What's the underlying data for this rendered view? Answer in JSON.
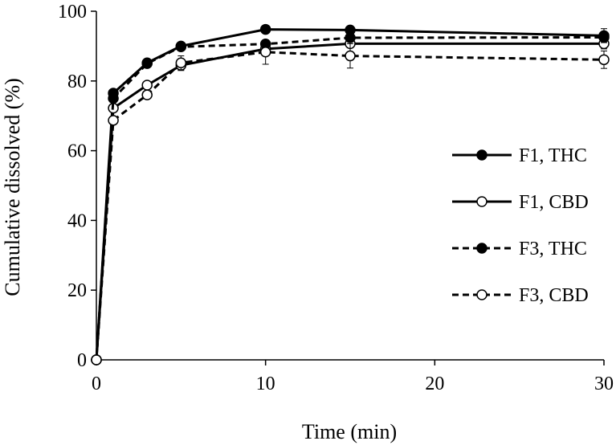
{
  "chart_data": {
    "type": "line",
    "xlabel": "Time (min)",
    "ylabel": "Cumulative dissolved (%)",
    "xlim": [
      0,
      30
    ],
    "ylim": [
      0,
      100
    ],
    "x_ticks": [
      0,
      10,
      20,
      30
    ],
    "y_ticks": [
      0,
      20,
      40,
      60,
      80,
      100
    ],
    "grid": false,
    "legend_position": "right",
    "series": [
      {
        "name": "F1, THC",
        "line": "solid",
        "marker": "filled",
        "x": [
          0,
          1,
          3,
          5,
          10,
          15,
          30
        ],
        "y": [
          0,
          76.5,
          85.2,
          90.0,
          94.8,
          94.6,
          93.0
        ],
        "err": [
          0,
          0.8,
          0.8,
          0.8,
          0.8,
          0.8,
          2.0
        ]
      },
      {
        "name": "F1, CBD",
        "line": "solid",
        "marker": "open",
        "x": [
          0,
          1,
          3,
          5,
          10,
          15,
          30
        ],
        "y": [
          0,
          72.2,
          78.8,
          84.5,
          89.2,
          90.7,
          90.7
        ],
        "err": [
          0,
          1.0,
          1.0,
          1.5,
          1.5,
          1.2,
          1.5
        ]
      },
      {
        "name": "F3, THC",
        "line": "dashed",
        "marker": "filled",
        "x": [
          0,
          1,
          3,
          5,
          10,
          15,
          30
        ],
        "y": [
          0,
          75.0,
          85.0,
          89.8,
          90.6,
          92.4,
          92.5
        ],
        "err": [
          0,
          1.0,
          1.0,
          1.0,
          1.0,
          1.0,
          1.5
        ]
      },
      {
        "name": "F3, CBD",
        "line": "dashed",
        "marker": "open",
        "x": [
          0,
          1,
          3,
          5,
          10,
          15,
          30
        ],
        "y": [
          0,
          68.7,
          76.0,
          85.2,
          88.3,
          87.2,
          86.1
        ],
        "err": [
          0,
          1.0,
          1.0,
          2.0,
          3.5,
          3.5,
          2.5
        ]
      }
    ]
  }
}
